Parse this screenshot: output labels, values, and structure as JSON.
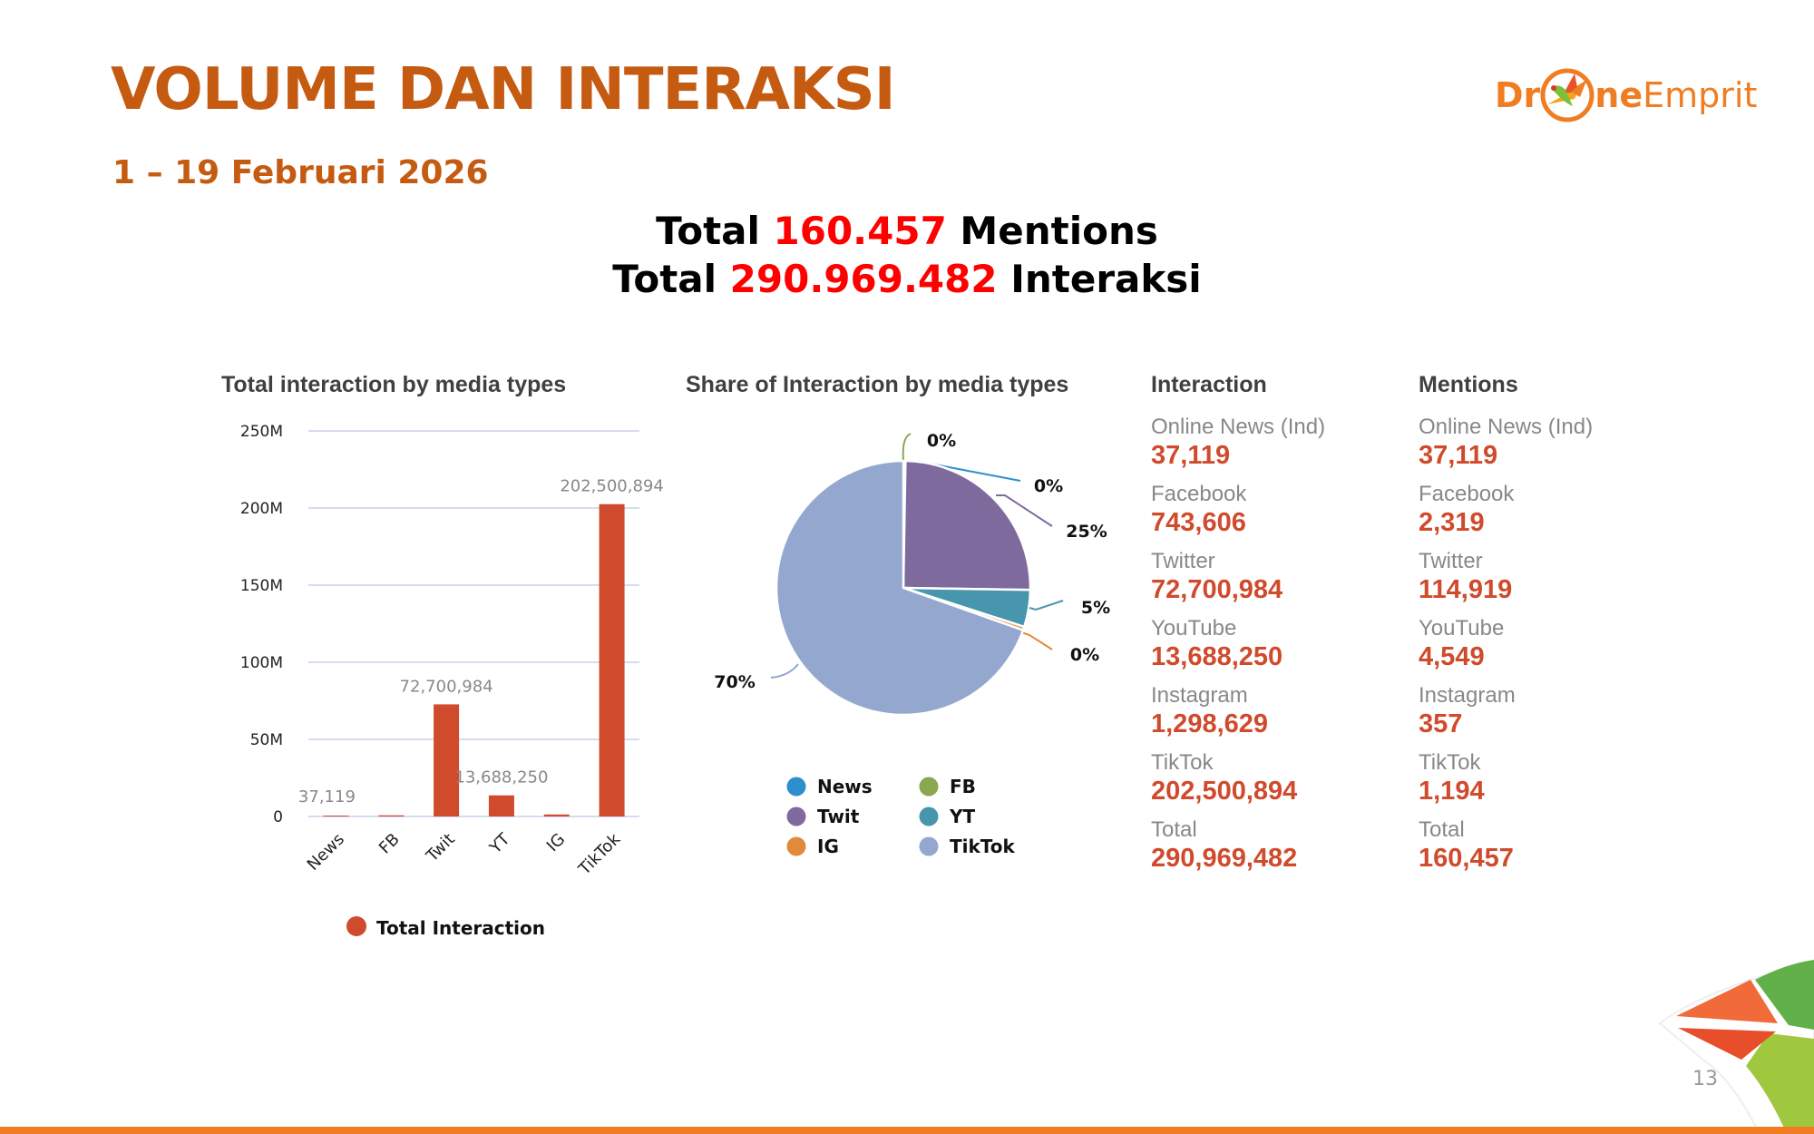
{
  "header": {
    "title": "VOLUME DAN INTERAKSI",
    "subtitle": "1 – 19 Februari 2026",
    "logo": {
      "part1": "Dr",
      "icon": "bird-in-circle-icon",
      "part2": "ne",
      "part3": "Emprit"
    }
  },
  "totals": {
    "line1_prefix": "Total ",
    "mentions": "160.457",
    "line1_suffix": " Mentions",
    "line2_prefix": "Total ",
    "interactions": "290.969.482",
    "line2_suffix": " Interaksi"
  },
  "colors": {
    "title_orange": "#c55a11",
    "value_red": "#d04a2c",
    "highlight_red": "#ff0000",
    "bar": "#d04a2c",
    "footer_orange": "#f07b22"
  },
  "chart_data": [
    {
      "type": "bar",
      "title": "Total interaction by media types",
      "categories": [
        "News",
        "FB",
        "Twit",
        "YT",
        "IG",
        "TikTok"
      ],
      "series": [
        {
          "name": "Total Interaction",
          "color": "#d04a2c",
          "values": [
            37119,
            743606,
            72700984,
            13688250,
            1298629,
            202500894
          ]
        }
      ],
      "data_labels": [
        "37,119",
        "",
        "72,700,984",
        "13,688,250",
        "",
        "202,500,894"
      ],
      "yticks": [
        0,
        50000000,
        100000000,
        150000000,
        200000000,
        250000000
      ],
      "ytick_labels": [
        "0",
        "50M",
        "100M",
        "150M",
        "200M",
        "250M"
      ],
      "ylim": [
        0,
        250000000
      ],
      "xlabel": "",
      "ylabel": "",
      "grid": true,
      "legend": "bottom"
    },
    {
      "type": "pie",
      "title": "Share of Interaction by media types",
      "slices": [
        {
          "name": "News",
          "value": 37119,
          "label": "0%",
          "color": "#2e8fcc"
        },
        {
          "name": "FB",
          "value": 743606,
          "label": "0%",
          "color": "#8aa64e"
        },
        {
          "name": "Twit",
          "value": 72700984,
          "label": "25%",
          "color": "#7f6a9e"
        },
        {
          "name": "YT",
          "value": 13688250,
          "label": "5%",
          "color": "#4896ad"
        },
        {
          "name": "IG",
          "value": 1298629,
          "label": "0%",
          "color": "#e08a3c"
        },
        {
          "name": "TikTok",
          "value": 202500894,
          "label": "70%",
          "color": "#94a8cf"
        }
      ],
      "legend": "bottom",
      "legend_order": [
        "News",
        "FB",
        "Twit",
        "YT",
        "IG",
        "TikTok"
      ]
    }
  ],
  "interaction": {
    "heading": "Interaction",
    "items": [
      {
        "label": "Online News (Ind)",
        "value": "37,119"
      },
      {
        "label": "Facebook",
        "value": "743,606"
      },
      {
        "label": "Twitter",
        "value": "72,700,984"
      },
      {
        "label": "YouTube",
        "value": "13,688,250"
      },
      {
        "label": "Instagram",
        "value": "1,298,629"
      },
      {
        "label": "TikTok",
        "value": "202,500,894"
      },
      {
        "label": "Total",
        "value": "290,969,482"
      }
    ]
  },
  "mentions": {
    "heading": "Mentions",
    "items": [
      {
        "label": "Online News (Ind)",
        "value": "37,119"
      },
      {
        "label": "Facebook",
        "value": "2,319"
      },
      {
        "label": "Twitter",
        "value": "114,919"
      },
      {
        "label": "YouTube",
        "value": "4,549"
      },
      {
        "label": "Instagram",
        "value": "357"
      },
      {
        "label": "TikTok",
        "value": "1,194"
      },
      {
        "label": "Total",
        "value": "160,457"
      }
    ]
  },
  "footer": {
    "page_number": "13"
  }
}
